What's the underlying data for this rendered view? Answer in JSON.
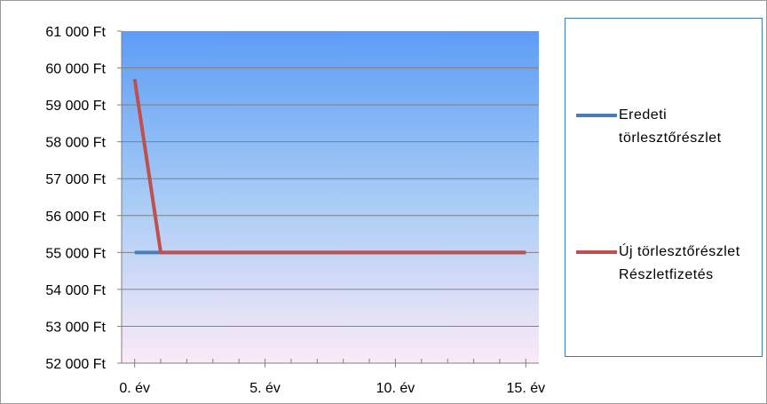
{
  "chart_data": {
    "type": "line",
    "x_ticks": [
      "0. év",
      "5. év",
      "10. év",
      "15. év"
    ],
    "x_range": [
      -0.5,
      15.5
    ],
    "y_ticks": [
      "52 000 Ft",
      "53 000 Ft",
      "54 000 Ft",
      "55 000 Ft",
      "56 000 Ft",
      "57 000 Ft",
      "58 000 Ft",
      "59 000 Ft",
      "60 000 Ft",
      "61 000 Ft"
    ],
    "ylim": [
      52000,
      61000
    ],
    "grid": true,
    "legend_position": "right",
    "series": [
      {
        "name": "Eredeti törlesztőrészlet",
        "color": "#4a7ebb",
        "points": [
          [
            0,
            55000
          ],
          [
            15,
            55000
          ]
        ]
      },
      {
        "name": "Új törlesztőrészlet Részletfizetés",
        "color": "#c0504d",
        "points": [
          [
            0,
            59700
          ],
          [
            1,
            55000
          ],
          [
            15,
            55000
          ]
        ]
      }
    ]
  },
  "legend": [
    {
      "label": "Eredeti törlesztőrészlet",
      "color": "#4a7ebb"
    },
    {
      "label": "Új törlesztőrészlet Részletfizetés",
      "color": "#c0504d"
    }
  ],
  "colors": {
    "plot_gradient_top": "#5d9cf7",
    "plot_gradient_mid": "#a6cbf5",
    "plot_gradient_bottom": "#fbeaf7",
    "gridline": "#808080",
    "axis": "#808080"
  }
}
